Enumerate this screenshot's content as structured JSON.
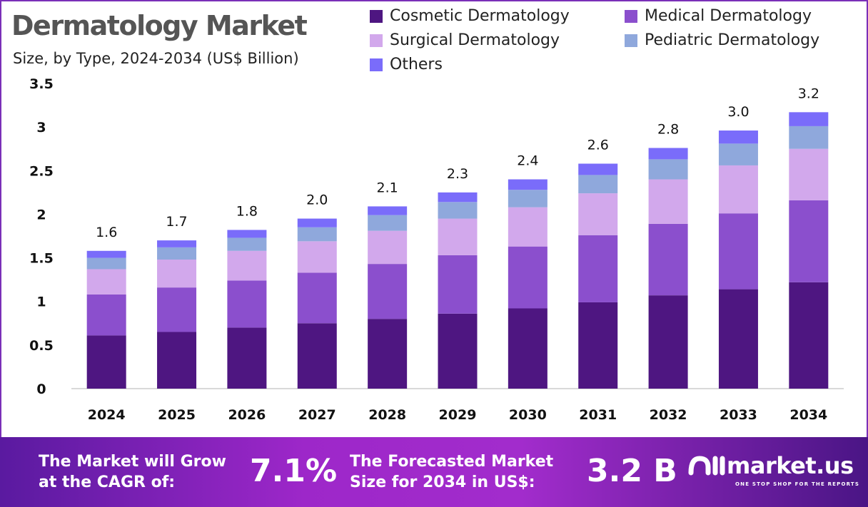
{
  "chart_data": {
    "type": "bar",
    "stacked": true,
    "title": "Dermatology Market",
    "subtitle": "Size, by Type, 2024-2034 (US$ Billion)",
    "xlabel": "",
    "ylabel": "",
    "ylim": [
      0,
      3.5
    ],
    "yticks": [
      "0",
      "0.5",
      "1",
      "1.5",
      "2",
      "2.5",
      "3",
      "3.5"
    ],
    "grid": false,
    "legend_position": "top-right",
    "categories": [
      "2024",
      "2025",
      "2026",
      "2027",
      "2028",
      "2029",
      "2030",
      "2031",
      "2032",
      "2033",
      "2034"
    ],
    "series": [
      {
        "name": "Cosmetic Dermatology",
        "color": "#4e1681",
        "values": [
          0.61,
          0.65,
          0.7,
          0.75,
          0.8,
          0.86,
          0.92,
          0.99,
          1.07,
          1.14,
          1.22
        ]
      },
      {
        "name": "Medical Dermatology",
        "color": "#8b4fcd",
        "values": [
          0.47,
          0.51,
          0.54,
          0.58,
          0.63,
          0.67,
          0.71,
          0.77,
          0.82,
          0.87,
          0.94
        ]
      },
      {
        "name": "Surgical Dermatology",
        "color": "#d2a8ec",
        "values": [
          0.29,
          0.32,
          0.34,
          0.36,
          0.38,
          0.42,
          0.45,
          0.48,
          0.51,
          0.55,
          0.59
        ]
      },
      {
        "name": "Pediatric Dermatology",
        "color": "#8fa8dc",
        "values": [
          0.13,
          0.14,
          0.15,
          0.16,
          0.18,
          0.19,
          0.2,
          0.21,
          0.23,
          0.25,
          0.26
        ]
      },
      {
        "name": "Others",
        "color": "#7a6cfa",
        "values": [
          0.08,
          0.08,
          0.09,
          0.1,
          0.1,
          0.11,
          0.12,
          0.13,
          0.13,
          0.15,
          0.16
        ]
      }
    ],
    "totals": [
      "1.6",
      "1.7",
      "1.8",
      "2.0",
      "2.1",
      "2.3",
      "2.4",
      "2.6",
      "2.8",
      "3.0",
      "3.2"
    ]
  },
  "footer": {
    "cagr_label_1": "The Market will Grow",
    "cagr_label_2": "at the CAGR of:",
    "cagr_value": "7.1%",
    "forecast_label_1": "The Forecasted Market",
    "forecast_label_2": "Size for 2034 in US$:",
    "forecast_value": "3.2 B",
    "brand": "market.us",
    "tagline": "ONE STOP SHOP FOR THE REPORTS"
  }
}
